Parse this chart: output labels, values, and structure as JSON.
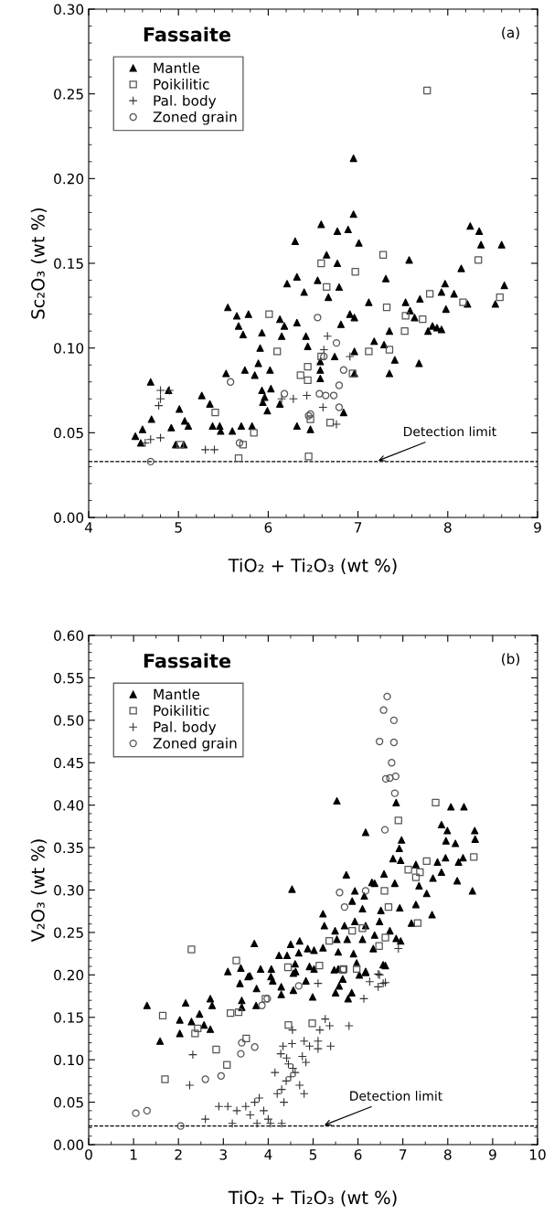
{
  "chart_data": [
    {
      "type": "scatter",
      "title": "Fassaite",
      "xlabel": "TiO₂ + Ti₂O₃ (wt %)",
      "ylabel": "Sc₂O₃ (wt %)",
      "annotations": [
        "(a)"
      ],
      "xlim": [
        4,
        9
      ],
      "xticks": [
        4,
        5,
        6,
        7,
        8,
        9
      ],
      "ylim": [
        0,
        0.3
      ],
      "yticks": [
        {
          "value": 0,
          "label": "0.00"
        },
        {
          "value": 0.05,
          "label": "0.05"
        },
        {
          "value": 0.1,
          "label": "0.10"
        },
        {
          "value": 0.15,
          "label": "0.15"
        },
        {
          "value": 0.2,
          "label": "0.20"
        },
        {
          "value": 0.25,
          "label": "0.25"
        },
        {
          "value": 0.3,
          "label": "0.30"
        }
      ],
      "legend": "top left",
      "grid": false,
      "ref_lines": [
        {
          "axis": "y",
          "value": 0.033,
          "label": "Detection limit",
          "line_style": "dashed",
          "color": "#000000"
        }
      ],
      "series": [
        {
          "name": "Mantle",
          "marker": "triangle",
          "color": "#000000",
          "x": [
            4.52,
            4.58,
            4.6,
            4.69,
            4.7,
            4.89,
            4.92,
            4.97,
            5.01,
            5.06,
            5.07,
            5.11,
            5.26,
            5.35,
            5.38,
            5.46,
            5.47,
            5.53,
            5.55,
            5.6,
            5.65,
            5.67,
            5.7,
            5.72,
            5.74,
            5.78,
            5.82,
            5.85,
            5.89,
            5.91,
            5.93,
            5.93,
            5.94,
            5.96,
            5.99,
            6.02,
            6.03,
            6.13,
            6.13,
            6.15,
            6.18,
            6.21,
            6.3,
            6.32,
            6.32,
            6.32,
            6.4,
            6.42,
            6.44,
            6.55,
            6.59,
            6.65,
            6.67,
            6.77,
            6.77,
            6.79,
            6.89,
            6.95,
            6.95,
            7.01,
            6.91,
            6.96,
            6.81,
            6.58,
            6.58,
            6.74,
            6.84,
            6.96,
            6.96,
            6.47,
            6.58,
            7.12,
            7.18,
            7.29,
            7.31,
            7.35,
            7.35,
            7.41,
            7.57,
            7.53,
            7.58,
            7.63,
            7.68,
            7.69,
            7.78,
            7.83,
            7.88,
            7.93,
            7.93,
            7.97,
            7.98,
            8.07,
            8.15,
            8.22,
            8.25,
            8.35,
            8.37,
            8.53,
            8.6,
            8.63
          ],
          "values": [
            0.048,
            0.044,
            0.052,
            0.08,
            0.058,
            0.075,
            0.053,
            0.043,
            0.064,
            0.043,
            0.057,
            0.054,
            0.072,
            0.067,
            0.054,
            0.054,
            0.051,
            0.085,
            0.124,
            0.051,
            0.119,
            0.113,
            0.054,
            0.108,
            0.087,
            0.12,
            0.054,
            0.084,
            0.091,
            0.1,
            0.109,
            0.075,
            0.068,
            0.071,
            0.063,
            0.087,
            0.076,
            0.067,
            0.117,
            0.107,
            0.113,
            0.138,
            0.163,
            0.142,
            0.115,
            0.054,
            0.133,
            0.107,
            0.101,
            0.14,
            0.173,
            0.155,
            0.13,
            0.169,
            0.15,
            0.136,
            0.17,
            0.212,
            0.179,
            0.162,
            0.12,
            0.118,
            0.114,
            0.087,
            0.082,
            0.095,
            0.062,
            0.098,
            0.085,
            0.052,
            0.092,
            0.127,
            0.104,
            0.102,
            0.141,
            0.11,
            0.085,
            0.093,
            0.152,
            0.127,
            0.122,
            0.118,
            0.091,
            0.129,
            0.11,
            0.113,
            0.112,
            0.111,
            0.133,
            0.138,
            0.123,
            0.132,
            0.147,
            0.126,
            0.172,
            0.169,
            0.161,
            0.126,
            0.161,
            0.137
          ]
        },
        {
          "name": "Poikilitic",
          "marker": "square",
          "color": "#555555",
          "x": [
            5.02,
            5.41,
            5.67,
            5.72,
            5.84,
            6.01,
            6.1,
            6.36,
            6.44,
            6.45,
            6.44,
            6.59,
            6.65,
            6.97,
            7.28,
            7.32,
            7.12,
            7.35,
            7.52,
            7.53,
            7.72,
            7.77,
            7.8,
            8.17,
            8.34,
            8.58,
            6.59,
            6.69,
            6.47,
            6.94
          ],
          "values": [
            0.043,
            0.062,
            0.035,
            0.043,
            0.05,
            0.12,
            0.098,
            0.084,
            0.081,
            0.036,
            0.089,
            0.15,
            0.136,
            0.145,
            0.155,
            0.124,
            0.098,
            0.099,
            0.11,
            0.119,
            0.117,
            0.252,
            0.132,
            0.127,
            0.152,
            0.13,
            0.095,
            0.056,
            0.058,
            0.085
          ]
        },
        {
          "name": "Pal. body",
          "marker": "cross",
          "color": "#333333",
          "x": [
            4.63,
            4.69,
            4.8,
            4.78,
            4.8,
            4.8,
            4.9,
            5.3,
            5.4,
            6.15,
            6.28,
            6.43,
            6.61,
            6.66,
            6.62,
            6.76,
            6.91
          ],
          "values": [
            0.044,
            0.046,
            0.047,
            0.066,
            0.07,
            0.075,
            0.075,
            0.04,
            0.04,
            0.07,
            0.07,
            0.072,
            0.065,
            0.107,
            0.099,
            0.055,
            0.095
          ]
        },
        {
          "name": "Zoned grain",
          "marker": "circle",
          "color": "#555555",
          "x": [
            4.69,
            5.58,
            5.68,
            6.18,
            6.45,
            6.55,
            6.76,
            6.62,
            6.84,
            6.79,
            6.57,
            6.64,
            6.73,
            6.79,
            6.47
          ],
          "values": [
            0.033,
            0.08,
            0.044,
            0.073,
            0.06,
            0.118,
            0.103,
            0.095,
            0.087,
            0.078,
            0.073,
            0.072,
            0.072,
            0.065,
            0.061
          ]
        }
      ]
    },
    {
      "type": "scatter",
      "title": "Fassaite",
      "xlabel": "TiO₂ + Ti₂O₃ (wt %)",
      "ylabel": "V₂O₃ (wt %)",
      "annotations": [
        "(b)"
      ],
      "xlim": [
        0,
        10
      ],
      "xticks": [
        0,
        1,
        2,
        3,
        4,
        5,
        6,
        7,
        8,
        9,
        10
      ],
      "ylim": [
        0,
        0.6
      ],
      "yticks": [
        {
          "value": 0,
          "label": "0.00"
        },
        {
          "value": 0.05,
          "label": "0.05"
        },
        {
          "value": 0.1,
          "label": "0.10"
        },
        {
          "value": 0.15,
          "label": "0.15"
        },
        {
          "value": 0.2,
          "label": "0.20"
        },
        {
          "value": 0.25,
          "label": "0.25"
        },
        {
          "value": 0.3,
          "label": "0.30"
        },
        {
          "value": 0.35,
          "label": "0.35"
        },
        {
          "value": 0.4,
          "label": "0.40"
        },
        {
          "value": 0.45,
          "label": "0.45"
        },
        {
          "value": 0.5,
          "label": "0.50"
        },
        {
          "value": 0.55,
          "label": "0.55"
        },
        {
          "value": 0.6,
          "label": "0.60"
        }
      ],
      "legend": "top left",
      "grid": false,
      "ref_lines": [
        {
          "axis": "y",
          "value": 0.022,
          "label": "Detection limit",
          "line_style": "dashed",
          "color": "#000000"
        }
      ],
      "series": [
        {
          "name": "Mantle",
          "marker": "triangle",
          "color": "#000000",
          "x": [
            4.53,
            3.69,
            4.5,
            4.7,
            4.88,
            4.24,
            4.42,
            4.68,
            3.1,
            3.59,
            3.83,
            4.07,
            3.39,
            4.6,
            5.53,
            6.17,
            5.74,
            6.85,
            8.07,
            8.36,
            7.86,
            7.99,
            8.6,
            8.61,
            8.17,
            7.96,
            6.97,
            6.92,
            6.78,
            6.95,
            7.77,
            7.95,
            8.24,
            8.34,
            8.21,
            8.55,
            7.86,
            7.67,
            7.29,
            7.53,
            7.36,
            7.29,
            7.65,
            7.19,
            6.93,
            6.82,
            6.58,
            6.37,
            5.93,
            6.14,
            6.31,
            5.87,
            6.1,
            6.51,
            6.48,
            6.17,
            5.93,
            5.22,
            5.25,
            5.49,
            5.7,
            5.53,
            5.76,
            6.1,
            6.37,
            6.71,
            6.95,
            6.85,
            6.34,
            5.22,
            5.02,
            5.56,
            5.9,
            5.56,
            5.66,
            5.02,
            4.61,
            6.61,
            6.03,
            6.17,
            1.3,
            1.59,
            2.03,
            2.03,
            2.16,
            2.29,
            2.47,
            2.57,
            2.71,
            2.71,
            2.75,
            3.37,
            3.41,
            3.41,
            3.55,
            3.73,
            3.74,
            4.06,
            4.1,
            4.29,
            4.29,
            4.56,
            4.56,
            4.84,
            4.99,
            4.92,
            5.47,
            5.5,
            5.58,
            5.66,
            5.78,
            5.86,
            6.17,
            6.56,
            5.97
          ],
          "values": [
            0.301,
            0.237,
            0.236,
            0.24,
            0.231,
            0.223,
            0.223,
            0.226,
            0.204,
            0.199,
            0.207,
            0.207,
            0.208,
            0.213,
            0.405,
            0.368,
            0.318,
            0.403,
            0.398,
            0.398,
            0.377,
            0.37,
            0.37,
            0.36,
            0.355,
            0.358,
            0.359,
            0.349,
            0.337,
            0.335,
            0.333,
            0.338,
            0.333,
            0.338,
            0.311,
            0.299,
            0.321,
            0.314,
            0.33,
            0.296,
            0.305,
            0.283,
            0.271,
            0.261,
            0.279,
            0.308,
            0.319,
            0.308,
            0.299,
            0.293,
            0.309,
            0.287,
            0.278,
            0.276,
            0.263,
            0.258,
            0.263,
            0.272,
            0.258,
            0.252,
            0.258,
            0.242,
            0.242,
            0.242,
            0.247,
            0.252,
            0.24,
            0.243,
            0.231,
            0.232,
            0.229,
            0.227,
            0.225,
            0.207,
            0.195,
            0.207,
            0.204,
            0.211,
            0.2,
            0.204,
            0.164,
            0.122,
            0.131,
            0.147,
            0.167,
            0.145,
            0.154,
            0.141,
            0.136,
            0.172,
            0.164,
            0.19,
            0.17,
            0.162,
            0.198,
            0.164,
            0.184,
            0.198,
            0.193,
            0.186,
            0.177,
            0.182,
            0.202,
            0.193,
            0.174,
            0.21,
            0.206,
            0.179,
            0.187,
            0.195,
            0.172,
            0.179,
            0.203,
            0.212,
            0.214
          ]
        },
        {
          "name": "Poikilitic",
          "marker": "square",
          "color": "#555555",
          "x": [
            2.29,
            3.29,
            4.44,
            7.73,
            6.9,
            8.58,
            7.53,
            7.12,
            7.38,
            7.29,
            6.59,
            6.68,
            7.33,
            5.87,
            6.1,
            6.61,
            6.47,
            5.36,
            5.14,
            5.68,
            5.97,
            1.65,
            2.37,
            2.43,
            2.84,
            3.08,
            3.16,
            3.34,
            3.51,
            3.94,
            4.45,
            4.98,
            5.66,
            1.7
          ],
          "values": [
            0.23,
            0.217,
            0.209,
            0.403,
            0.382,
            0.339,
            0.334,
            0.324,
            0.321,
            0.315,
            0.299,
            0.28,
            0.261,
            0.252,
            0.255,
            0.244,
            0.234,
            0.24,
            0.211,
            0.207,
            0.207,
            0.152,
            0.131,
            0.137,
            0.112,
            0.094,
            0.155,
            0.156,
            0.125,
            0.172,
            0.141,
            0.143,
            0.206,
            0.077
          ]
        },
        {
          "name": "Pal. body",
          "marker": "cross",
          "color": "#333333",
          "x": [
            2.32,
            4.33,
            4.54,
            4.53,
            4.8,
            4.92,
            5.11,
            5.15,
            5.27,
            5.37,
            5.39,
            5.8,
            4.28,
            4.41,
            4.76,
            4.84,
            5.11,
            6.13,
            6.26,
            6.45,
            6.56,
            6.45,
            5.11,
            6.9,
            6.48,
            6.61,
            2.25,
            2.9,
            3.1,
            3.3,
            3.5,
            3.6,
            3.7,
            3.8,
            3.9,
            4.0,
            4.05,
            4.2,
            4.3,
            4.4,
            4.5,
            4.55,
            4.6,
            4.7,
            4.8,
            4.35,
            3.2,
            3.75,
            4.3,
            2.6,
            4.15,
            4.45
          ],
          "values": [
            0.106,
            0.116,
            0.135,
            0.119,
            0.122,
            0.116,
            0.122,
            0.135,
            0.148,
            0.14,
            0.116,
            0.14,
            0.107,
            0.102,
            0.104,
            0.097,
            0.113,
            0.172,
            0.192,
            0.186,
            0.19,
            0.201,
            0.19,
            0.231,
            0.2,
            0.191,
            0.07,
            0.045,
            0.045,
            0.04,
            0.045,
            0.035,
            0.05,
            0.055,
            0.04,
            0.03,
            0.025,
            0.06,
            0.065,
            0.075,
            0.08,
            0.09,
            0.085,
            0.07,
            0.06,
            0.05,
            0.025,
            0.025,
            0.025,
            0.03,
            0.085,
            0.095
          ]
        },
        {
          "name": "Zoned grain",
          "marker": "circle",
          "color": "#555555",
          "x": [
            3.41,
            3.39,
            3.7,
            3.98,
            3.86,
            4.68,
            6.65,
            6.57,
            6.8,
            6.48,
            6.8,
            6.75,
            6.62,
            6.71,
            6.84,
            6.82,
            6.6,
            5.59,
            5.7,
            6.17,
            1.05,
            1.3,
            2.05,
            2.6,
            2.95
          ],
          "values": [
            0.12,
            0.107,
            0.115,
            0.172,
            0.164,
            0.187,
            0.528,
            0.512,
            0.5,
            0.475,
            0.474,
            0.45,
            0.431,
            0.432,
            0.434,
            0.414,
            0.371,
            0.297,
            0.28,
            0.299,
            0.037,
            0.04,
            0.022,
            0.077,
            0.081
          ]
        }
      ]
    }
  ]
}
